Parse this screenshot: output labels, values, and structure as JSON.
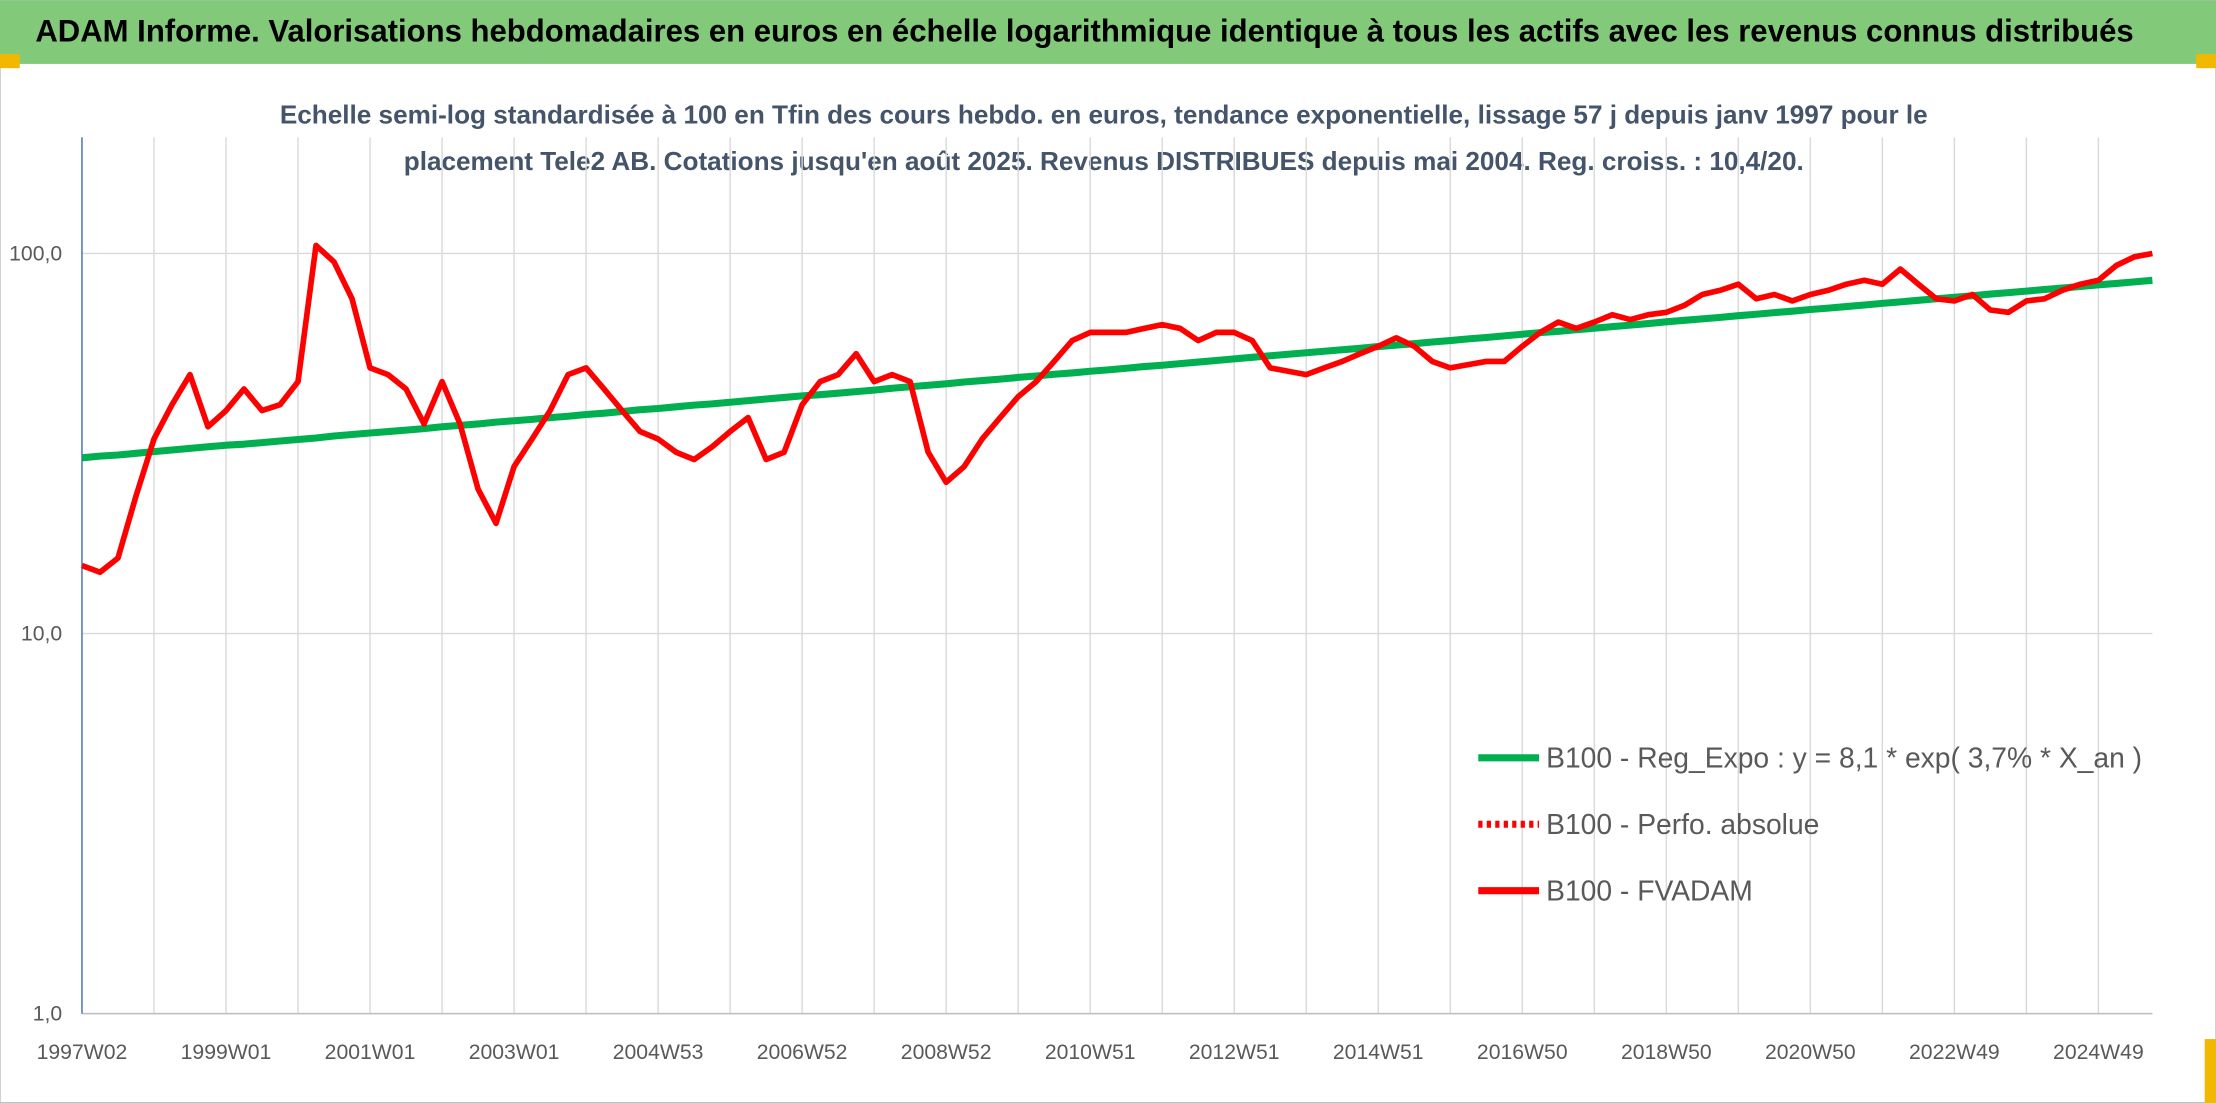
{
  "chart_data": {
    "type": "line",
    "title": "ADAM Informe. Valorisations hebdomadaires en euros en échelle logarithmique identique à tous les actifs avec les revenus connus distribués",
    "subtitle": [
      "Echelle semi-log standardisée à 100 en Tfin des cours hebdo. en euros, tendance exponentielle, lissage 57 j depuis janv 1997 pour le",
      "placement Tele2 AB. Cotations jusqu'en août 2025. Revenus DISTRIBUES depuis mai 2004. Reg. croiss. : 10,4/20."
    ],
    "log_scale": true,
    "grid": true,
    "legend": "lower right",
    "ylim": [
      1,
      202
    ],
    "yticks": [
      {
        "value": 1,
        "label": "1,0"
      },
      {
        "value": 10,
        "label": "10,0"
      },
      {
        "value": 100,
        "label": "100,0"
      }
    ],
    "categories": [
      "1997W02",
      null,
      null,
      null,
      null,
      null,
      null,
      null,
      "1999W01",
      null,
      null,
      null,
      null,
      null,
      null,
      null,
      "2001W01",
      null,
      null,
      null,
      null,
      null,
      null,
      null,
      "2003W01",
      null,
      null,
      null,
      null,
      null,
      null,
      null,
      "2004W53",
      null,
      null,
      null,
      null,
      null,
      null,
      null,
      "2006W52",
      null,
      null,
      null,
      null,
      null,
      null,
      null,
      "2008W52",
      null,
      null,
      null,
      null,
      null,
      null,
      null,
      "2010W51",
      null,
      null,
      null,
      null,
      null,
      null,
      null,
      "2012W51",
      null,
      null,
      null,
      null,
      null,
      null,
      null,
      "2014W51",
      null,
      null,
      null,
      null,
      null,
      null,
      null,
      "2016W50",
      null,
      null,
      null,
      null,
      null,
      null,
      null,
      "2018W50",
      null,
      null,
      null,
      null,
      null,
      null,
      null,
      "2020W50",
      null,
      null,
      null,
      null,
      null,
      null,
      null,
      "2022W49",
      null,
      null,
      null,
      null,
      null,
      null,
      null,
      "2024W49",
      null,
      null,
      null
    ],
    "series": [
      {
        "name": "B100 - Reg_Expo : y = 8,1 * exp( 3,7% *  X_an )",
        "color": "#00b050",
        "line_style": "solid",
        "values": [
          29.0,
          29.3,
          29.5,
          29.8,
          30.1,
          30.4,
          30.7,
          31.0,
          31.3,
          31.5,
          31.8,
          32.1,
          32.4,
          32.7,
          33.1,
          33.4,
          33.7,
          34.0,
          34.3,
          34.6,
          35.0,
          35.3,
          35.6,
          36.0,
          36.3,
          36.6,
          37.0,
          37.3,
          37.7,
          38.0,
          38.4,
          38.8,
          39.1,
          39.5,
          39.9,
          40.2,
          40.6,
          41.0,
          41.4,
          41.8,
          42.2,
          42.5,
          42.9,
          43.3,
          43.7,
          44.2,
          44.6,
          45.0,
          45.4,
          45.9,
          46.3,
          46.7,
          47.2,
          47.6,
          48.1,
          48.5,
          49.0,
          49.4,
          49.9,
          50.4,
          50.8,
          51.3,
          51.8,
          52.3,
          52.8,
          53.3,
          53.8,
          54.3,
          54.8,
          55.3,
          55.8,
          56.3,
          56.9,
          57.4,
          57.9,
          58.5,
          59.0,
          59.6,
          60.1,
          60.7,
          61.3,
          61.9,
          62.4,
          63.0,
          63.6,
          64.2,
          64.8,
          65.4,
          66.1,
          66.7,
          67.3,
          67.9,
          68.6,
          69.2,
          69.9,
          70.5,
          71.2,
          71.8,
          72.5,
          73.2,
          73.9,
          74.6,
          75.3,
          76.0,
          76.7,
          77.4,
          78.2,
          78.9,
          79.6,
          80.4,
          81.1,
          81.9,
          82.7,
          83.4,
          84.2,
          85.0
        ]
      },
      {
        "name": "B100 - Perfo. absolue",
        "color": "#ff0000",
        "line_style": "dotted",
        "values": [
          null,
          null,
          null,
          null,
          null,
          null,
          null,
          null,
          null,
          null,
          null,
          null,
          null,
          null,
          null,
          null,
          null,
          null,
          null,
          null,
          null,
          null,
          null,
          null,
          null,
          null,
          null,
          null,
          null,
          null,
          null,
          null,
          null,
          null,
          null,
          null,
          null,
          null,
          null,
          null,
          null,
          null,
          null,
          null,
          null,
          null,
          null,
          null,
          null,
          null,
          null,
          null,
          null,
          null,
          null,
          null,
          null,
          null,
          null,
          null,
          null,
          null,
          null,
          null,
          null,
          null,
          null,
          null,
          null,
          null,
          null,
          null,
          null,
          null,
          null,
          null,
          null,
          null,
          null,
          null,
          null,
          null,
          null,
          null,
          null,
          null,
          null,
          null,
          null,
          null,
          null,
          null,
          null,
          null,
          null,
          null,
          null,
          null,
          null,
          null,
          null,
          null,
          null,
          null,
          null,
          null,
          null,
          null,
          null,
          null,
          null,
          null,
          null,
          null,
          null,
          null
        ]
      },
      {
        "name": "B100 - FVADAM",
        "color": "#ff0000",
        "line_style": "solid",
        "values": [
          15.1,
          14.5,
          15.8,
          23,
          32.5,
          40,
          48,
          35,
          38.6,
          44,
          38.6,
          40,
          46,
          105,
          95,
          76,
          50,
          48,
          44,
          35.6,
          46,
          35.6,
          24,
          19.5,
          27.5,
          32.5,
          38.6,
          48,
          50,
          44,
          38.6,
          34,
          32.5,
          30,
          28.7,
          31,
          34,
          37,
          28.7,
          30,
          40,
          46,
          48,
          54.5,
          46,
          48,
          46,
          30,
          25,
          27.5,
          32.5,
          37,
          42,
          46,
          52,
          59,
          62,
          62,
          62,
          63.5,
          65,
          63.5,
          59,
          62,
          62,
          59,
          50,
          49,
          48,
          50,
          52,
          54.5,
          57,
          60,
          57,
          52,
          50,
          51,
          52,
          52,
          57,
          62,
          66,
          63.5,
          66,
          69,
          67,
          69,
          70,
          73,
          78,
          80,
          83,
          76,
          78,
          75,
          78,
          80,
          83,
          85,
          83,
          91,
          83,
          76,
          75,
          78,
          71,
          70,
          75,
          76,
          80,
          83,
          85,
          93,
          98,
          100
        ]
      }
    ]
  }
}
